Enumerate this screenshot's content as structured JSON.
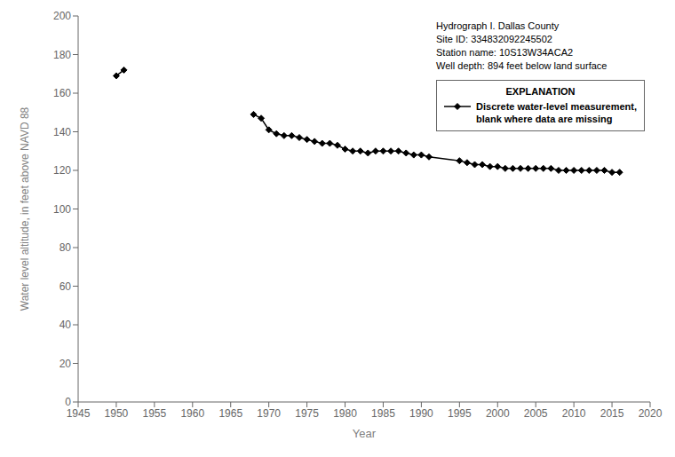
{
  "chart_data": {
    "type": "line",
    "xlabel": "Year",
    "ylabel": "Water level altitude, in feet above NAVD 88",
    "annotations": [
      "Hydrograph I. Dallas County",
      "Site ID: 334832092245502",
      "Station name: 10S13W34ACA2",
      "Well depth: 894 feet below land surface"
    ],
    "legend_title": "EXPLANATION",
    "series": [
      {
        "name": "Discrete water-level measurement,\nblank where data are missing",
        "color": "#000000",
        "marker": "diamond",
        "x": [
          1950,
          1951
        ],
        "values": [
          169,
          172
        ]
      },
      {
        "color": "#000000",
        "marker": "diamond",
        "x": [
          1968,
          1969,
          1970,
          1971,
          1972,
          1973,
          1974,
          1975,
          1976,
          1977,
          1978,
          1979,
          1980,
          1981,
          1982,
          1983,
          1984,
          1985,
          1986,
          1987,
          1988,
          1989,
          1990,
          1991,
          1995,
          1996,
          1997,
          1998,
          1999,
          2000,
          2001,
          2002,
          2003,
          2004,
          2005,
          2006,
          2007,
          2008,
          2009,
          2010,
          2011,
          2012,
          2013,
          2014,
          2015,
          2016
        ],
        "values": [
          149,
          147,
          141,
          139,
          138,
          138,
          137,
          136,
          135,
          134,
          134,
          133,
          131,
          130,
          130,
          129,
          130,
          130,
          130,
          130,
          129,
          128,
          128,
          127,
          125,
          124,
          123,
          123,
          122,
          122,
          121,
          121,
          121,
          121,
          121,
          121,
          121,
          120,
          120,
          120,
          120,
          120,
          120,
          120,
          119,
          119
        ]
      }
    ],
    "xlim": [
      1945,
      2020
    ],
    "ylim": [
      0,
      200
    ],
    "xticks": [
      1945,
      1950,
      1955,
      1960,
      1965,
      1970,
      1975,
      1980,
      1985,
      1990,
      1995,
      2000,
      2005,
      2010,
      2015,
      2020
    ],
    "yticks": [
      0,
      20,
      40,
      60,
      80,
      100,
      120,
      140,
      160,
      180,
      200
    ],
    "grid": false,
    "legend": "upper right"
  }
}
